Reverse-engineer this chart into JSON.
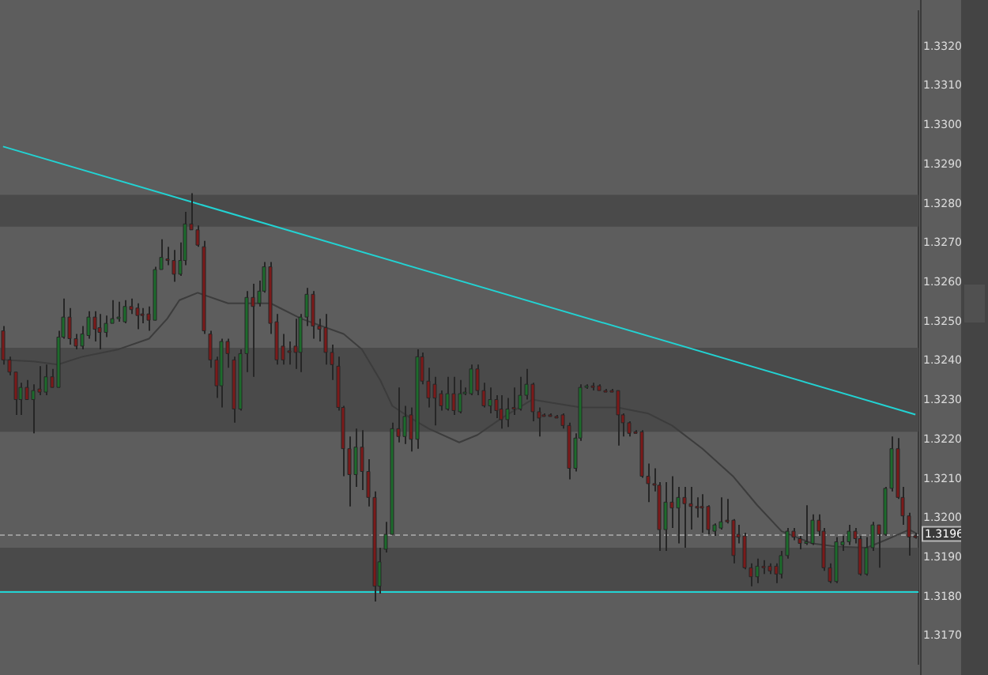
{
  "chart_data": {
    "type": "candlestick",
    "categories": [
      null,
      null,
      null,
      null,
      null,
      null,
      null,
      null,
      null,
      null,
      null,
      null,
      null,
      null,
      null,
      null,
      null,
      null,
      null,
      null,
      null,
      null,
      null,
      null,
      null,
      null,
      null,
      null,
      null,
      null,
      null,
      null,
      null,
      null,
      null,
      null,
      null,
      null,
      null,
      null,
      null,
      null,
      null,
      null,
      null,
      null,
      null,
      null,
      null,
      null,
      null,
      null,
      null,
      null,
      null,
      null,
      null,
      null,
      null,
      null,
      null,
      null,
      null,
      null,
      null,
      null,
      null,
      null,
      null,
      null,
      null,
      null,
      null,
      null,
      null,
      null,
      null,
      null,
      null,
      null,
      null,
      null,
      null,
      null,
      null,
      null,
      null,
      null,
      null,
      null,
      null,
      null,
      null,
      null,
      null,
      null,
      null,
      null,
      null,
      null,
      null,
      null,
      null,
      null,
      null,
      null,
      null,
      null,
      null,
      null,
      null,
      null,
      null,
      null,
      null,
      null,
      null,
      null,
      null,
      null,
      null,
      null,
      null,
      null,
      null,
      null,
      null,
      null,
      null,
      null,
      null,
      null,
      null,
      null,
      null,
      null,
      null,
      null,
      null,
      null,
      null,
      null,
      null,
      null,
      null,
      null,
      null,
      null,
      null,
      null,
      null
    ],
    "ohlc": [
      [
        1.32477,
        1.32489,
        1.32391,
        1.32403
      ],
      [
        1.32403,
        1.32411,
        1.32364,
        1.32372
      ],
      [
        1.32372,
        1.32372,
        1.32263,
        1.32302
      ],
      [
        1.32302,
        1.32345,
        1.32263,
        1.32333
      ],
      [
        1.32333,
        1.32352,
        1.32302,
        1.32302
      ],
      [
        1.32302,
        1.32341,
        1.32216,
        1.32325
      ],
      [
        1.32329,
        1.32387,
        1.32313,
        1.32321
      ],
      [
        1.32321,
        1.32391,
        1.32313,
        1.3236
      ],
      [
        1.3236,
        1.3238,
        1.32333,
        1.32333
      ],
      [
        1.32333,
        1.32477,
        1.32333,
        1.32461
      ],
      [
        1.32461,
        1.32559,
        1.32457,
        1.32512
      ],
      [
        1.32512,
        1.32535,
        1.32442,
        1.32457
      ],
      [
        1.32457,
        1.32469,
        1.3243,
        1.32438
      ],
      [
        1.32438,
        1.32489,
        1.3243,
        1.32469
      ],
      [
        1.32465,
        1.32527,
        1.32457,
        1.32512
      ],
      [
        1.32512,
        1.32527,
        1.3245,
        1.32481
      ],
      [
        1.32485,
        1.3252,
        1.3243,
        1.32473
      ],
      [
        1.32473,
        1.32516,
        1.32461,
        1.32496
      ],
      [
        1.32496,
        1.32555,
        1.32496,
        1.32508
      ],
      [
        1.32508,
        1.32551,
        1.325,
        1.32512
      ],
      [
        1.325,
        1.32555,
        1.32496,
        1.32539
      ],
      [
        1.32539,
        1.32559,
        1.3252,
        1.32531
      ],
      [
        1.32535,
        1.32547,
        1.32481,
        1.32516
      ],
      [
        1.3252,
        1.32535,
        1.32496,
        1.32516
      ],
      [
        1.3252,
        1.32539,
        1.32477,
        1.32504
      ],
      [
        1.32504,
        1.3264,
        1.32504,
        1.32633
      ],
      [
        1.32633,
        1.3271,
        1.32633,
        1.32664
      ],
      [
        1.3266,
        1.32691,
        1.32644,
        1.32656
      ],
      [
        1.32656,
        1.32683,
        1.32602,
        1.32621
      ],
      [
        1.32621,
        1.32702,
        1.32617,
        1.32656
      ],
      [
        1.32656,
        1.3278,
        1.32644,
        1.32749
      ],
      [
        1.32749,
        1.32827,
        1.32734,
        1.32734
      ],
      [
        1.32734,
        1.32745,
        1.32691,
        1.32695
      ],
      [
        1.32691,
        1.32706,
        1.32469,
        1.32477
      ],
      [
        1.32469,
        1.32477,
        1.32383,
        1.32403
      ],
      [
        1.32403,
        1.32411,
        1.32306,
        1.32337
      ],
      [
        1.32337,
        1.32457,
        1.32282,
        1.3245
      ],
      [
        1.3245,
        1.32457,
        1.32383,
        1.32419
      ],
      [
        1.32403,
        1.32411,
        1.32243,
        1.32278
      ],
      [
        1.32278,
        1.3243,
        1.32274,
        1.32419
      ],
      [
        1.32419,
        1.32578,
        1.32372,
        1.32562
      ],
      [
        1.32562,
        1.32597,
        1.3236,
        1.32539
      ],
      [
        1.32547,
        1.32605,
        1.32539,
        1.32578
      ],
      [
        1.32578,
        1.32652,
        1.32574,
        1.3264
      ],
      [
        1.3264,
        1.32652,
        1.32469,
        1.32496
      ],
      [
        1.325,
        1.3252,
        1.32391,
        1.32403
      ],
      [
        1.32438,
        1.32469,
        1.32391,
        1.32403
      ],
      [
        1.32426,
        1.3245,
        1.32391,
        1.32422
      ],
      [
        1.32438,
        1.32508,
        1.3238,
        1.32422
      ],
      [
        1.32422,
        1.3252,
        1.32372,
        1.32512
      ],
      [
        1.32512,
        1.32586,
        1.32489,
        1.3257
      ],
      [
        1.3257,
        1.32578,
        1.32457,
        1.32489
      ],
      [
        1.32489,
        1.32508,
        1.3245,
        1.32481
      ],
      [
        1.32485,
        1.3252,
        1.32391,
        1.32422
      ],
      [
        1.32422,
        1.32442,
        1.32352,
        1.32391
      ],
      [
        1.32387,
        1.32411,
        1.32274,
        1.32282
      ],
      [
        1.32282,
        1.32286,
        1.32107,
        1.32177
      ],
      [
        1.32177,
        1.32208,
        1.3203,
        1.32111
      ],
      [
        1.32111,
        1.32228,
        1.3208,
        1.32181
      ],
      [
        1.32181,
        1.32224,
        1.32072,
        1.32119
      ],
      [
        1.32119,
        1.3215,
        1.3203,
        1.32053
      ],
      [
        1.32053,
        1.32068,
        1.31788,
        1.31827
      ],
      [
        1.31827,
        1.31925,
        1.31808,
        1.31889
      ],
      [
        1.31921,
        1.31991,
        1.31913,
        1.31959
      ],
      [
        1.31959,
        1.32243,
        1.31959,
        1.32228
      ],
      [
        1.32228,
        1.32333,
        1.32193,
        1.32208
      ],
      [
        1.32208,
        1.32286,
        1.32189,
        1.32259
      ],
      [
        1.32263,
        1.32282,
        1.3217,
        1.32201
      ],
      [
        1.32201,
        1.3243,
        1.32177,
        1.32411
      ],
      [
        1.32411,
        1.32422,
        1.32341,
        1.32349
      ],
      [
        1.32349,
        1.32383,
        1.32282,
        1.32306
      ],
      [
        1.32341,
        1.3236,
        1.32236,
        1.32306
      ],
      [
        1.32317,
        1.32325,
        1.32274,
        1.32286
      ],
      [
        1.32278,
        1.3236,
        1.32274,
        1.32317
      ],
      [
        1.32317,
        1.3236,
        1.32263,
        1.32274
      ],
      [
        1.32271,
        1.32352,
        1.32267,
        1.32317
      ],
      [
        1.32317,
        1.32333,
        1.32313,
        1.32321
      ],
      [
        1.32317,
        1.32391,
        1.32313,
        1.3238
      ],
      [
        1.3238,
        1.32391,
        1.32313,
        1.32325
      ],
      [
        1.32325,
        1.32345,
        1.32282,
        1.32286
      ],
      [
        1.32286,
        1.32333,
        1.32267,
        1.32302
      ],
      [
        1.32302,
        1.32313,
        1.32255,
        1.32274
      ],
      [
        1.32278,
        1.32313,
        1.32228,
        1.32251
      ],
      [
        1.32251,
        1.32306,
        1.32232,
        1.32278
      ],
      [
        1.32282,
        1.32333,
        1.32263,
        1.32278
      ],
      [
        1.32278,
        1.3236,
        1.32274,
        1.32313
      ],
      [
        1.32313,
        1.3238,
        1.32302,
        1.32341
      ],
      [
        1.32341,
        1.32345,
        1.32247,
        1.32271
      ],
      [
        1.32271,
        1.32282,
        1.32208,
        1.32255
      ],
      [
        1.32263,
        1.32267,
        1.32259,
        1.32263
      ],
      [
        1.32263,
        1.32267,
        1.32259,
        1.32263
      ],
      [
        1.32259,
        1.32263,
        1.32255,
        1.32259
      ],
      [
        1.32263,
        1.32267,
        1.32228,
        1.32236
      ],
      [
        1.32236,
        1.32243,
        1.32099,
        1.32127
      ],
      [
        1.32127,
        1.32216,
        1.32119,
        1.32204
      ],
      [
        1.32204,
        1.32341,
        1.32197,
        1.32333
      ],
      [
        1.32333,
        1.32341,
        1.32329,
        1.32337
      ],
      [
        1.32337,
        1.32345,
        1.32325,
        1.32337
      ],
      [
        1.32337,
        1.32341,
        1.32325,
        1.32325
      ],
      [
        1.32325,
        1.32329,
        1.32321,
        1.32325
      ],
      [
        1.32325,
        1.32329,
        1.32321,
        1.32325
      ],
      [
        1.32325,
        1.32325,
        1.32185,
        1.32263
      ],
      [
        1.32263,
        1.32267,
        1.32208,
        1.32243
      ],
      [
        1.32243,
        1.32247,
        1.32208,
        1.32216
      ],
      [
        1.3222,
        1.32224,
        1.32216,
        1.3222
      ],
      [
        1.3222,
        1.32224,
        1.32103,
        1.32107
      ],
      [
        1.32107,
        1.32139,
        1.32041,
        1.32088
      ],
      [
        1.32088,
        1.32127,
        1.32068,
        1.32084
      ],
      [
        1.32084,
        1.32092,
        1.31917,
        1.31971
      ],
      [
        1.31971,
        1.32092,
        1.31917,
        1.32041
      ],
      [
        1.32041,
        1.32107,
        1.31975,
        1.32026
      ],
      [
        1.32026,
        1.3208,
        1.31936,
        1.32053
      ],
      [
        1.32053,
        1.3208,
        1.31925,
        1.32037
      ],
      [
        1.32037,
        1.3208,
        1.31971,
        1.3203
      ],
      [
        1.3203,
        1.32053,
        1.32002,
        1.32026
      ],
      [
        1.3203,
        1.32061,
        1.31963,
        1.32026
      ],
      [
        1.3203,
        1.32033,
        1.31959,
        1.31971
      ],
      [
        1.31967,
        1.31987,
        1.31955,
        1.31983
      ],
      [
        1.31975,
        1.32053,
        1.31971,
        1.31991
      ],
      [
        1.31995,
        1.32049,
        1.31987,
        1.31991
      ],
      [
        1.31995,
        1.31998,
        1.31885,
        1.31905
      ],
      [
        1.31959,
        1.31983,
        1.31936,
        1.31952
      ],
      [
        1.31955,
        1.31963,
        1.3187,
        1.31874
      ],
      [
        1.31874,
        1.31885,
        1.31827,
        1.31851
      ],
      [
        1.31851,
        1.31897,
        1.31835,
        1.31878
      ],
      [
        1.31878,
        1.31893,
        1.31858,
        1.31874
      ],
      [
        1.31878,
        1.31885,
        1.31858,
        1.31866
      ],
      [
        1.31878,
        1.31885,
        1.31835,
        1.31858
      ],
      [
        1.31858,
        1.31917,
        1.31847,
        1.31905
      ],
      [
        1.31905,
        1.31975,
        1.31897,
        1.31967
      ],
      [
        1.31967,
        1.31975,
        1.31944,
        1.31952
      ],
      [
        1.31948,
        1.31955,
        1.31921,
        1.31936
      ],
      [
        1.31936,
        1.32033,
        1.31932,
        1.3194
      ],
      [
        1.31936,
        1.3201,
        1.31932,
        1.31995
      ],
      [
        1.31995,
        1.3201,
        1.31955,
        1.31967
      ],
      [
        1.31967,
        1.31975,
        1.31866,
        1.31874
      ],
      [
        1.31874,
        1.31885,
        1.31835,
        1.31839
      ],
      [
        1.31839,
        1.31952,
        1.31835,
        1.3194
      ],
      [
        1.31932,
        1.31955,
        1.31917,
        1.3194
      ],
      [
        1.3194,
        1.31983,
        1.31932,
        1.31967
      ],
      [
        1.31967,
        1.31975,
        1.31936,
        1.31948
      ],
      [
        1.31948,
        1.31955,
        1.31854,
        1.31858
      ],
      [
        1.31858,
        1.31952,
        1.31854,
        1.31925
      ],
      [
        1.31925,
        1.31991,
        1.31917,
        1.31983
      ],
      [
        1.31983,
        1.31983,
        1.31874,
        1.31959
      ],
      [
        1.31959,
        1.3208,
        1.31955,
        1.32076
      ],
      [
        1.32076,
        1.32208,
        1.32068,
        1.32177
      ],
      [
        1.32177,
        1.32204,
        1.32049,
        1.32053
      ],
      [
        1.32053,
        1.3208,
        1.31983,
        1.32006
      ],
      [
        1.32006,
        1.32014,
        1.31905,
        1.31952
      ],
      [
        1.31955,
        1.31963,
        1.31948,
        1.31952
      ]
    ],
    "colors": [
      "#7b1a1a",
      "#7b1a1a",
      "#7b1a1a",
      "#1d6b2c",
      "#7b1a1a",
      "#1d6b2c",
      "#7b1a1a",
      "#1d6b2c",
      "#7b1a1a",
      "#1d6b2c",
      "#1d6b2c",
      "#7b1a1a",
      "#7b1a1a",
      "#1d6b2c",
      "#1d6b2c",
      "#7b1a1a",
      "#7b1a1a",
      "#1d6b2c",
      "#1d6b2c",
      "#1d6b2c",
      "#1d6b2c",
      "#7b1a1a",
      "#7b1a1a",
      "#7b1a1a",
      "#7b1a1a",
      "#1d6b2c",
      "#1d6b2c",
      "#7b1a1a",
      "#7b1a1a",
      "#1d6b2c",
      "#1d6b2c",
      "#7b1a1a",
      "#7b1a1a",
      "#7b1a1a",
      "#7b1a1a",
      "#7b1a1a",
      "#1d6b2c",
      "#7b1a1a",
      "#7b1a1a",
      "#1d6b2c",
      "#1d6b2c",
      "#7b1a1a",
      "#1d6b2c",
      "#1d6b2c",
      "#7b1a1a",
      "#7b1a1a",
      "#7b1a1a",
      "#7b1a1a",
      "#7b1a1a",
      "#1d6b2c",
      "#1d6b2c",
      "#7b1a1a",
      "#7b1a1a",
      "#7b1a1a",
      "#7b1a1a",
      "#7b1a1a",
      "#7b1a1a",
      "#7b1a1a",
      "#1d6b2c",
      "#7b1a1a",
      "#7b1a1a",
      "#7b1a1a",
      "#1d6b2c",
      "#1d6b2c",
      "#1d6b2c",
      "#7b1a1a",
      "#1d6b2c",
      "#7b1a1a",
      "#1d6b2c",
      "#7b1a1a",
      "#7b1a1a",
      "#7b1a1a",
      "#7b1a1a",
      "#1d6b2c",
      "#7b1a1a",
      "#1d6b2c",
      "#1d6b2c",
      "#1d6b2c",
      "#7b1a1a",
      "#7b1a1a",
      "#1d6b2c",
      "#7b1a1a",
      "#7b1a1a",
      "#1d6b2c",
      "#7b1a1a",
      "#1d6b2c",
      "#1d6b2c",
      "#7b1a1a",
      "#7b1a1a",
      "#7b1a1a",
      "#7b1a1a",
      "#7b1a1a",
      "#7b1a1a",
      "#7b1a1a",
      "#1d6b2c",
      "#1d6b2c",
      "#1d6b2c",
      "#7b1a1a",
      "#7b1a1a",
      "#7b1a1a",
      "#7b1a1a",
      "#7b1a1a",
      "#7b1a1a",
      "#7b1a1a",
      "#7b1a1a",
      "#7b1a1a",
      "#7b1a1a",
      "#7b1a1a",
      "#7b1a1a",
      "#1d6b2c",
      "#7b1a1a",
      "#1d6b2c",
      "#7b1a1a",
      "#7b1a1a",
      "#7b1a1a",
      "#7b1a1a",
      "#7b1a1a",
      "#1d6b2c",
      "#1d6b2c",
      "#7b1a1a",
      "#7b1a1a",
      "#7b1a1a",
      "#7b1a1a",
      "#7b1a1a",
      "#1d6b2c",
      "#7b1a1a",
      "#7b1a1a",
      "#7b1a1a",
      "#1d6b2c",
      "#1d6b2c",
      "#7b1a1a",
      "#7b1a1a",
      "#1d6b2c",
      "#1d6b2c",
      "#7b1a1a",
      "#7b1a1a",
      "#7b1a1a",
      "#1d6b2c",
      "#1d6b2c",
      "#1d6b2c",
      "#7b1a1a",
      "#7b1a1a",
      "#1d6b2c",
      "#1d6b2c",
      "#7b1a1a",
      "#1d6b2c",
      "#1d6b2c",
      "#7b1a1a",
      "#7b1a1a",
      "#7b1a1a",
      "#7b1a1a"
    ],
    "series": [
      {
        "type": "line",
        "color": "#3c3c3c",
        "values": [
          1.32403,
          null,
          null,
          null,
          null,
          1.32399,
          null,
          null,
          null,
          1.32391,
          null,
          null,
          null,
          1.32411,
          null,
          null,
          null,
          null,
          null,
          1.3243,
          null,
          null,
          null,
          null,
          1.32457,
          null,
          null,
          1.32508,
          null,
          1.32555,
          null,
          null,
          1.32574,
          null,
          null,
          null,
          null,
          1.32547,
          null,
          null,
          null,
          null,
          null,
          null,
          1.32547,
          null,
          null,
          null,
          null,
          1.32508,
          null,
          null,
          null,
          null,
          null,
          null,
          1.32469,
          null,
          null,
          1.3243,
          null,
          null,
          1.32352,
          null,
          1.32286,
          null,
          null,
          1.32255,
          null,
          null,
          1.32228,
          null,
          null,
          null,
          null,
          1.32193,
          null,
          null,
          1.32212,
          null,
          null,
          null,
          1.32255,
          null,
          null,
          null,
          null,
          1.32302,
          null,
          null,
          null,
          null,
          null,
          null,
          null,
          1.32282,
          null,
          null,
          null,
          null,
          null,
          1.32282,
          null,
          null,
          null,
          null,
          1.32267,
          null,
          null,
          null,
          1.32236,
          null,
          null,
          null,
          null,
          1.32177,
          null,
          null,
          null,
          null,
          1.32107,
          null,
          null,
          null,
          1.32033,
          null,
          null,
          null,
          1.31967,
          null,
          null,
          null,
          null,
          1.31936,
          null,
          null,
          null,
          1.31928,
          null,
          null,
          null,
          null,
          1.31925,
          null,
          null,
          1.31944,
          null,
          null,
          null,
          1.31971,
          1.31963
        ]
      },
      {
        "type": "line",
        "color": "#22d3d3",
        "values": [
          1.32946,
          null,
          null,
          null,
          null,
          null,
          null,
          null,
          null,
          null,
          null,
          null,
          null,
          null,
          null,
          null,
          null,
          null,
          null,
          null,
          null,
          null,
          null,
          null,
          null,
          null,
          null,
          null,
          null,
          null,
          null,
          null,
          null,
          null,
          null,
          null,
          null,
          null,
          null,
          null,
          null,
          null,
          null,
          null,
          null,
          null,
          null,
          null,
          null,
          null,
          null,
          null,
          null,
          null,
          null,
          null,
          null,
          null,
          null,
          null,
          null,
          null,
          null,
          null,
          null,
          null,
          null,
          null,
          null,
          null,
          null,
          null,
          null,
          null,
          null,
          null,
          null,
          null,
          null,
          null,
          null,
          null,
          null,
          null,
          null,
          null,
          null,
          null,
          null,
          null,
          null,
          null,
          null,
          null,
          null,
          null,
          null,
          null,
          null,
          null,
          null,
          null,
          null,
          null,
          null,
          null,
          null,
          null,
          null,
          null,
          null,
          null,
          null,
          null,
          null,
          null,
          null,
          null,
          null,
          null,
          null,
          null,
          null,
          null,
          null,
          null,
          null,
          null,
          null,
          null,
          null,
          null,
          null,
          null,
          null,
          null,
          null,
          null,
          null,
          null,
          null,
          null,
          null,
          null,
          null,
          null,
          null,
          null,
          null,
          null,
          1.32264
        ]
      }
    ],
    "bands": [
      {
        "axis": "y",
        "from": 1.32742,
        "to": 1.32823,
        "color": "#4a4a4a"
      },
      {
        "axis": "y",
        "from": 1.3222,
        "to": 1.32434,
        "color": "#4a4a4a"
      },
      {
        "axis": "y",
        "from": 1.31816,
        "to": 1.31925,
        "color": "#4a4a4a"
      }
    ],
    "ref_lines": [
      {
        "axis": "y",
        "value": 1.31816,
        "color": "#22d3d3",
        "line_style": "solid"
      },
      {
        "axis": "y",
        "value": 1.3196,
        "label": "1.3196",
        "color": "#9a9a9a",
        "line_style": "dashed"
      }
    ],
    "ylim": [
      1.3163,
      1.3329
    ],
    "yticks": [
      {
        "value": 1.317,
        "label": "1.3170"
      },
      {
        "value": 1.318,
        "label": "1.3180"
      },
      {
        "value": 1.319,
        "label": "1.3190"
      },
      {
        "value": 1.32,
        "label": "1.3200"
      },
      {
        "value": 1.321,
        "label": "1.3210"
      },
      {
        "value": 1.322,
        "label": "1.3220"
      },
      {
        "value": 1.323,
        "label": "1.3230"
      },
      {
        "value": 1.324,
        "label": "1.3240"
      },
      {
        "value": 1.325,
        "label": "1.3250"
      },
      {
        "value": 1.326,
        "label": "1.3260"
      },
      {
        "value": 1.327,
        "label": "1.3270"
      },
      {
        "value": 1.328,
        "label": "1.3280"
      },
      {
        "value": 1.329,
        "label": "1.3290"
      },
      {
        "value": 1.33,
        "label": "1.3300"
      },
      {
        "value": 1.331,
        "label": "1.3310"
      },
      {
        "value": 1.332,
        "label": "1.3320"
      }
    ],
    "tick_labels": "y",
    "grid": false,
    "legend": false
  }
}
